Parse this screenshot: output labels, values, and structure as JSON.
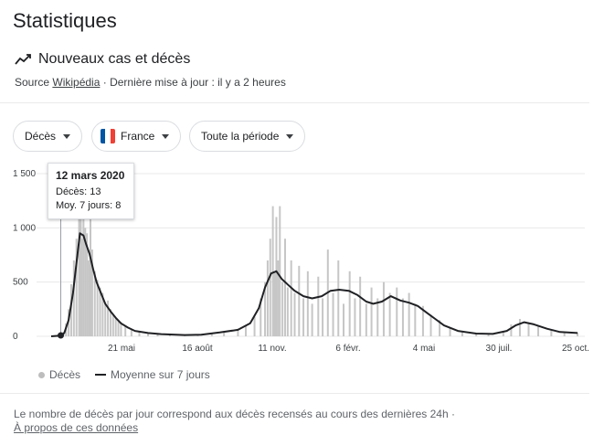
{
  "page": {
    "title": "Statistiques",
    "subtitle": "Nouveaux cas et décès",
    "source_prefix": "Source",
    "source_link": "Wikipédia",
    "source_suffix": "· Dernière mise à jour : il y a 2 heures"
  },
  "filters": {
    "metric": "Décès",
    "country": "France",
    "period": "Toute la période"
  },
  "colors": {
    "bars": "#c6c6c6",
    "average_line": "#202124",
    "flag_blue": "#0055a4",
    "flag_white": "#ffffff",
    "flag_red": "#ef4135"
  },
  "tooltip": {
    "date": "12 mars 2020",
    "line1": "Décès: 13",
    "line2": "Moy. 7 jours: 8"
  },
  "legend": {
    "bars": "Décès",
    "line": "Moyenne sur 7 jours"
  },
  "footer": {
    "note": "Le nombre de décès par jour correspond aux décès recensés au cours des dernières 24h ·",
    "link": "À propos de ces données"
  },
  "chart_data": {
    "type": "bar",
    "title": "",
    "xlabel": "",
    "ylabel": "",
    "ylim": [
      0,
      1500
    ],
    "y_ticks": [
      "0",
      "500",
      "1 000",
      "1 500"
    ],
    "x_ticks": [
      "21 mai",
      "16 août",
      "11 nov.",
      "6 févr.",
      "4 mai",
      "30 juil.",
      "25 oct."
    ],
    "grid": true,
    "legend_position": "bottom-left",
    "x_start": "2020-03-01",
    "x_end": "2021-10-25",
    "series": [
      {
        "name": "Décès",
        "style": "bars",
        "values": [
          [
            "2020-03-01",
            0
          ],
          [
            "2020-03-05",
            2
          ],
          [
            "2020-03-10",
            6
          ],
          [
            "2020-03-12",
            13
          ],
          [
            "2020-03-15",
            40
          ],
          [
            "2020-03-18",
            120
          ],
          [
            "2020-03-21",
            250
          ],
          [
            "2020-03-24",
            480
          ],
          [
            "2020-03-27",
            700
          ],
          [
            "2020-03-30",
            900
          ],
          [
            "2020-04-02",
            1150
          ],
          [
            "2020-04-04",
            1250
          ],
          [
            "2020-04-05",
            900
          ],
          [
            "2020-04-07",
            1200
          ],
          [
            "2020-04-09",
            1000
          ],
          [
            "2020-04-11",
            950
          ],
          [
            "2020-04-13",
            700
          ],
          [
            "2020-04-15",
            1400
          ],
          [
            "2020-04-17",
            800
          ],
          [
            "2020-04-20",
            600
          ],
          [
            "2020-04-23",
            520
          ],
          [
            "2020-04-26",
            450
          ],
          [
            "2020-04-29",
            400
          ],
          [
            "2020-05-02",
            300
          ],
          [
            "2020-05-05",
            330
          ],
          [
            "2020-05-08",
            250
          ],
          [
            "2020-05-11",
            200
          ],
          [
            "2020-05-14",
            170
          ],
          [
            "2020-05-17",
            150
          ],
          [
            "2020-05-20",
            130
          ],
          [
            "2020-05-25",
            100
          ],
          [
            "2020-06-01",
            60
          ],
          [
            "2020-06-10",
            40
          ],
          [
            "2020-06-20",
            25
          ],
          [
            "2020-07-01",
            20
          ],
          [
            "2020-07-15",
            15
          ],
          [
            "2020-08-01",
            12
          ],
          [
            "2020-08-16",
            15
          ],
          [
            "2020-09-01",
            25
          ],
          [
            "2020-09-15",
            50
          ],
          [
            "2020-10-01",
            70
          ],
          [
            "2020-10-10",
            100
          ],
          [
            "2020-10-20",
            180
          ],
          [
            "2020-10-27",
            350
          ],
          [
            "2020-11-01",
            500
          ],
          [
            "2020-11-04",
            700
          ],
          [
            "2020-11-07",
            900
          ],
          [
            "2020-11-10",
            1200
          ],
          [
            "2020-11-12",
            600
          ],
          [
            "2020-11-14",
            1100
          ],
          [
            "2020-11-16",
            700
          ],
          [
            "2020-11-18",
            1200
          ],
          [
            "2020-11-21",
            500
          ],
          [
            "2020-11-24",
            900
          ],
          [
            "2020-11-27",
            450
          ],
          [
            "2020-12-01",
            700
          ],
          [
            "2020-12-05",
            400
          ],
          [
            "2020-12-10",
            650
          ],
          [
            "2020-12-15",
            350
          ],
          [
            "2020-12-20",
            600
          ],
          [
            "2020-12-25",
            300
          ],
          [
            "2021-01-01",
            550
          ],
          [
            "2021-01-06",
            350
          ],
          [
            "2021-01-12",
            800
          ],
          [
            "2021-01-18",
            400
          ],
          [
            "2021-01-24",
            700
          ],
          [
            "2021-01-30",
            300
          ],
          [
            "2021-02-06",
            600
          ],
          [
            "2021-02-12",
            350
          ],
          [
            "2021-02-18",
            550
          ],
          [
            "2021-02-25",
            300
          ],
          [
            "2021-03-03",
            450
          ],
          [
            "2021-03-10",
            350
          ],
          [
            "2021-03-17",
            500
          ],
          [
            "2021-03-24",
            400
          ],
          [
            "2021-04-01",
            450
          ],
          [
            "2021-04-08",
            350
          ],
          [
            "2021-04-15",
            400
          ],
          [
            "2021-04-22",
            300
          ],
          [
            "2021-05-01",
            280
          ],
          [
            "2021-05-10",
            200
          ],
          [
            "2021-05-20",
            150
          ],
          [
            "2021-06-01",
            80
          ],
          [
            "2021-06-15",
            40
          ],
          [
            "2021-07-01",
            25
          ],
          [
            "2021-07-15",
            20
          ],
          [
            "2021-08-01",
            50
          ],
          [
            "2021-08-10",
            110
          ],
          [
            "2021-08-20",
            160
          ],
          [
            "2021-08-30",
            120
          ],
          [
            "2021-09-10",
            90
          ],
          [
            "2021-09-25",
            60
          ],
          [
            "2021-10-10",
            40
          ],
          [
            "2021-10-25",
            35
          ]
        ]
      },
      {
        "name": "Moyenne sur 7 jours",
        "style": "line",
        "values": [
          [
            "2020-03-01",
            0
          ],
          [
            "2020-03-10",
            5
          ],
          [
            "2020-03-12",
            8
          ],
          [
            "2020-03-16",
            30
          ],
          [
            "2020-03-21",
            150
          ],
          [
            "2020-03-26",
            400
          ],
          [
            "2020-03-31",
            750
          ],
          [
            "2020-04-03",
            950
          ],
          [
            "2020-04-07",
            930
          ],
          [
            "2020-04-10",
            850
          ],
          [
            "2020-04-14",
            760
          ],
          [
            "2020-04-18",
            620
          ],
          [
            "2020-04-22",
            500
          ],
          [
            "2020-04-27",
            400
          ],
          [
            "2020-05-02",
            300
          ],
          [
            "2020-05-08",
            230
          ],
          [
            "2020-05-14",
            170
          ],
          [
            "2020-05-20",
            120
          ],
          [
            "2020-05-28",
            80
          ],
          [
            "2020-06-05",
            50
          ],
          [
            "2020-06-20",
            30
          ],
          [
            "2020-07-05",
            20
          ],
          [
            "2020-08-01",
            12
          ],
          [
            "2020-08-20",
            15
          ],
          [
            "2020-09-10",
            35
          ],
          [
            "2020-10-01",
            60
          ],
          [
            "2020-10-15",
            120
          ],
          [
            "2020-10-25",
            260
          ],
          [
            "2020-11-01",
            450
          ],
          [
            "2020-11-08",
            580
          ],
          [
            "2020-11-14",
            600
          ],
          [
            "2020-11-20",
            530
          ],
          [
            "2020-11-28",
            470
          ],
          [
            "2020-12-05",
            420
          ],
          [
            "2020-12-15",
            370
          ],
          [
            "2020-12-25",
            350
          ],
          [
            "2021-01-05",
            370
          ],
          [
            "2021-01-15",
            420
          ],
          [
            "2021-01-25",
            430
          ],
          [
            "2021-02-05",
            420
          ],
          [
            "2021-02-15",
            380
          ],
          [
            "2021-02-25",
            320
          ],
          [
            "2021-03-05",
            300
          ],
          [
            "2021-03-15",
            320
          ],
          [
            "2021-03-25",
            370
          ],
          [
            "2021-04-05",
            330
          ],
          [
            "2021-04-15",
            310
          ],
          [
            "2021-04-25",
            280
          ],
          [
            "2021-05-05",
            220
          ],
          [
            "2021-05-15",
            160
          ],
          [
            "2021-05-25",
            100
          ],
          [
            "2021-06-10",
            50
          ],
          [
            "2021-07-01",
            25
          ],
          [
            "2021-07-20",
            22
          ],
          [
            "2021-08-05",
            50
          ],
          [
            "2021-08-15",
            100
          ],
          [
            "2021-08-25",
            130
          ],
          [
            "2021-09-05",
            110
          ],
          [
            "2021-09-20",
            70
          ],
          [
            "2021-10-05",
            40
          ],
          [
            "2021-10-25",
            30
          ]
        ]
      }
    ]
  }
}
